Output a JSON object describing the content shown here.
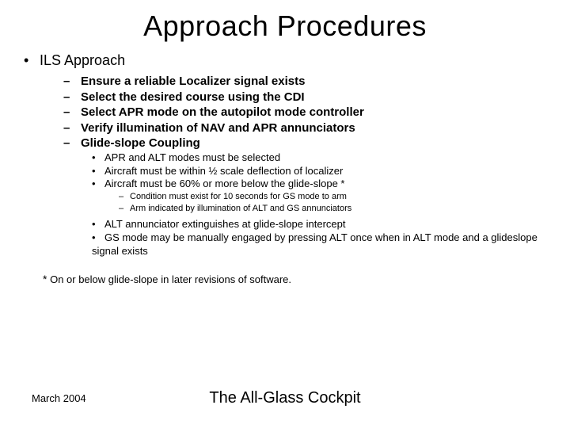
{
  "background_color": "#ffffff",
  "text_color": "#000000",
  "font_family": "Arial",
  "title": "Approach Procedures",
  "title_fontsize": 36,
  "bullets": {
    "l1": [
      "ILS Approach"
    ],
    "l2": [
      "Ensure a reliable Localizer signal exists",
      "Select the desired course using the CDI",
      "Select APR mode on the autopilot mode controller",
      "Verify illumination of NAV and APR annunciators",
      "Glide-slope Coupling"
    ],
    "l3a": [
      "APR and ALT modes must be selected",
      "Aircraft must be within ½ scale deflection of localizer",
      "Aircraft must be 60% or more below the glide-slope *"
    ],
    "l4": [
      "Condition must exist for 10 seconds for GS mode to arm",
      "Arm indicated by illumination of ALT and GS annunciators"
    ],
    "l3b": [
      "ALT annunciator extinguishes at glide-slope intercept",
      "GS mode may be manually engaged by pressing ALT once when in ALT mode and a glideslope signal exists"
    ]
  },
  "footnote": {
    "mark": "*",
    "text": "On or below glide-slope in later revisions of software."
  },
  "footer": {
    "date": "March 2004",
    "center": "The All-Glass Cockpit"
  },
  "bullet_glyphs": {
    "l1": "•",
    "l2": "–",
    "l3": "•",
    "l4": "–"
  },
  "font_sizes": {
    "l1": 18,
    "l2": 15,
    "l3": 13,
    "l4": 11,
    "footnote": 13,
    "footer_date": 13,
    "footer_center": 20
  }
}
